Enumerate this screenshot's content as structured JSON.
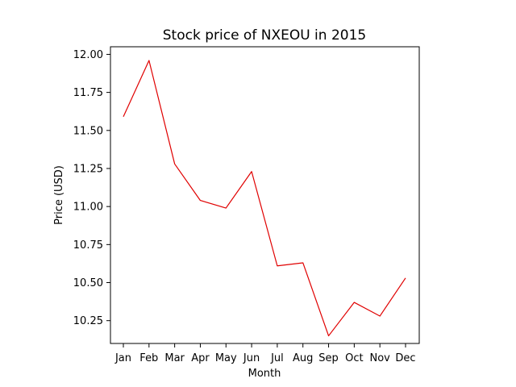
{
  "chart_data": {
    "type": "line",
    "title": "Stock price of NXEOU in 2015",
    "xlabel": "Month",
    "ylabel": "Price (USD)",
    "categories": [
      "Jan",
      "Feb",
      "Mar",
      "Apr",
      "May",
      "Jun",
      "Jul",
      "Aug",
      "Sep",
      "Oct",
      "Nov",
      "Dec"
    ],
    "series": [
      {
        "values": [
          11.59,
          11.96,
          11.28,
          11.04,
          10.99,
          11.23,
          10.61,
          10.63,
          10.15,
          10.37,
          10.28,
          10.53
        ],
        "color": "#e00000"
      }
    ],
    "ylim": [
      10.1,
      12.05
    ],
    "yticks": [
      10.25,
      10.5,
      10.75,
      11.0,
      11.25,
      11.5,
      11.75,
      12.0
    ],
    "ytick_labels": [
      "10.25",
      "10.50",
      "10.75",
      "11.00",
      "11.25",
      "11.50",
      "11.75",
      "12.00"
    ],
    "grid": false,
    "legend": false
  }
}
